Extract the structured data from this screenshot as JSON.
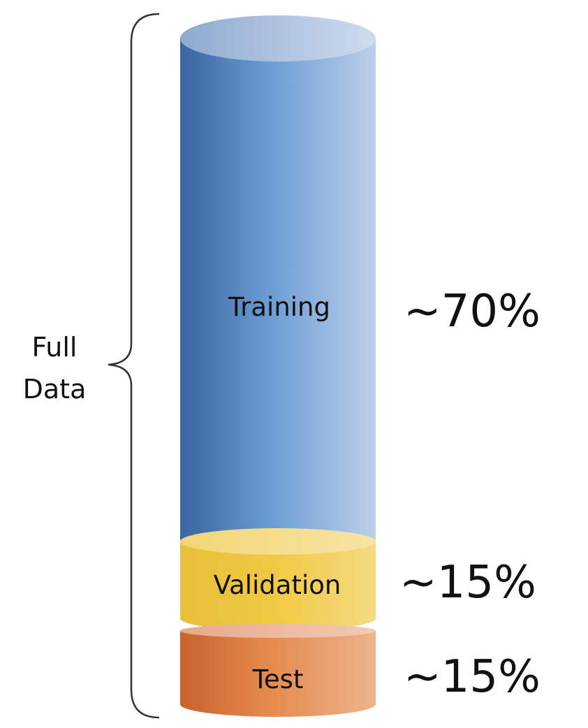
{
  "diagram": {
    "bracket_label_line1": "Full",
    "bracket_label_line2": "Data",
    "segments": [
      {
        "name": "Training",
        "percent_label": "~70%",
        "share": 70,
        "color": "#5b8ec9"
      },
      {
        "name": "Validation",
        "percent_label": "~15%",
        "share": 15,
        "color": "#f0c94a"
      },
      {
        "name": "Test",
        "percent_label": "~15%",
        "share": 15,
        "color": "#e08a4e"
      }
    ]
  }
}
